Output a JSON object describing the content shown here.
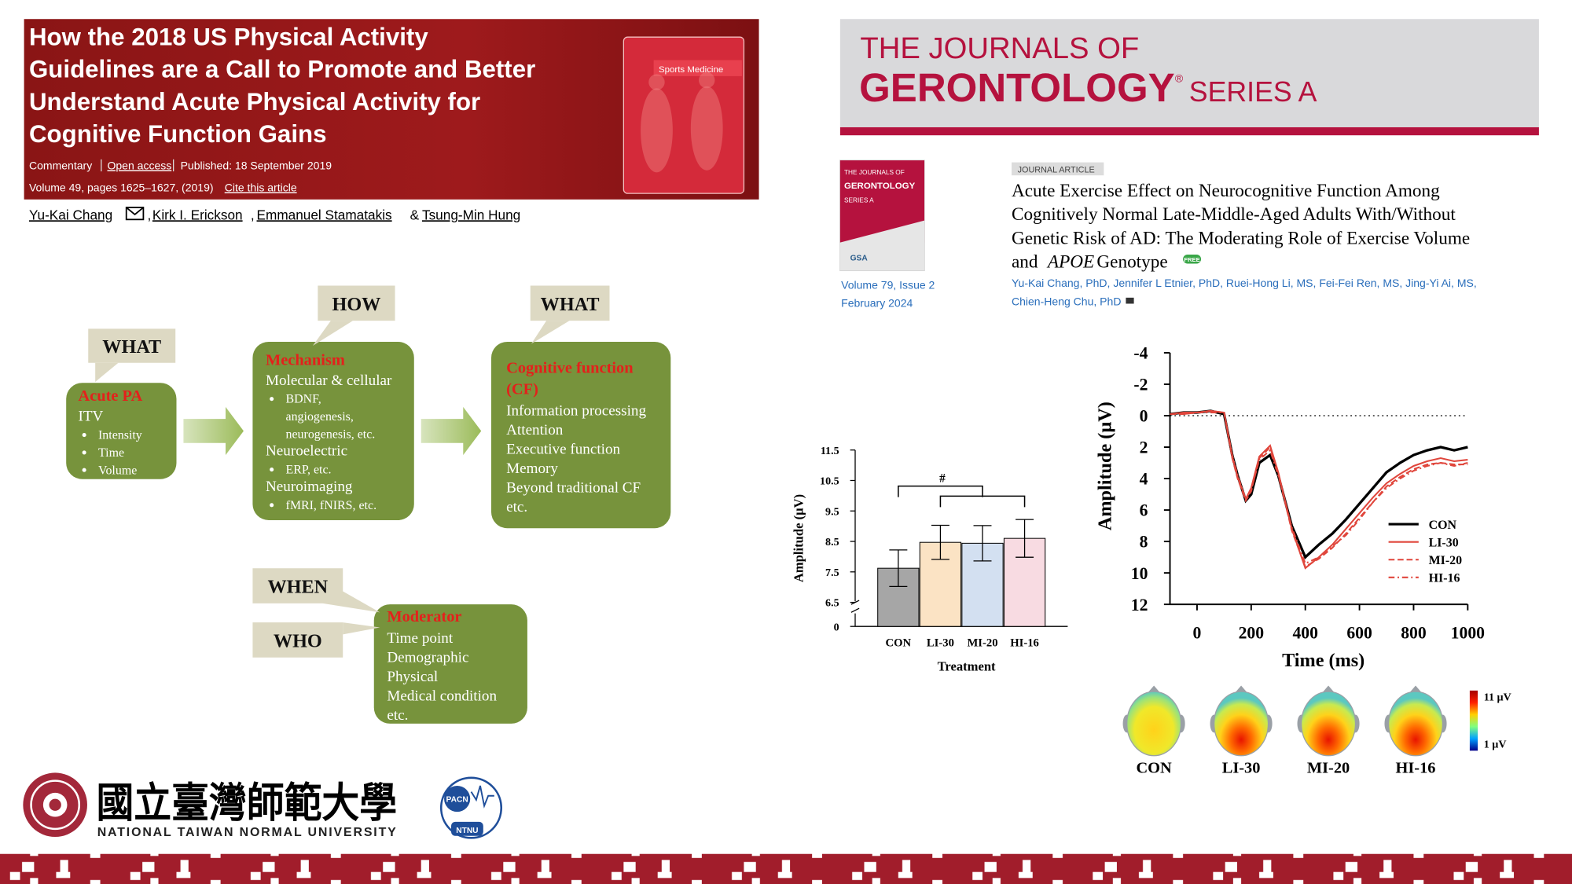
{
  "article1": {
    "title_lines": [
      "How the 2018 US Physical Activity",
      "Guidelines are a Call to Promote and Better",
      "Understand Acute Physical Activity for",
      "Cognitive Function Gains"
    ],
    "article_type": "Commentary",
    "access": "Open access",
    "published": "Published: 18 September 2019",
    "volume": "Volume 49, pages 1625–1627, (2019)",
    "cite": "Cite this article",
    "journal": "Sports Medicine",
    "authors": [
      "Yu-Kai Chang",
      "Kirk I. Erickson",
      "Emmanuel Stamatakis",
      "Tsung-Min Hung"
    ],
    "separators": [
      ",",
      ",",
      "&"
    ]
  },
  "journal2": {
    "banner_top": "THE JOURNALS OF",
    "banner_main": "GERONTOLOGY",
    "banner_reg": "®",
    "banner_series": "SERIES A",
    "cover_lines": [
      "THE JOURNALS OF",
      "GERONTOLOGY",
      "SERIES A"
    ],
    "cover_logo": "GSA",
    "volume": "Volume 79, Issue 2",
    "date": "February 2024",
    "tag": "JOURNAL ARTICLE",
    "title_lines": [
      "Acute Exercise Effect on Neurocognitive Function Among",
      "Cognitively Normal Late-Middle-Aged Adults With/Without",
      "Genetic Risk of AD: The Moderating Role of Exercise Volume"
    ],
    "title_last": [
      "and",
      "APOE",
      "Genotype"
    ],
    "badge": "FREE",
    "author_lines": [
      "Yu-Kai Chang, PhD, Jennifer L Etnier, PhD, Ruei-Hong Li, MS, Fei-Fei Ren, MS, Jing-Yi Ai, MS,",
      "Chien-Heng Chu, PhD"
    ]
  },
  "diagram": {
    "nodes": [
      {
        "questions": [
          "WHAT"
        ],
        "heading": [
          "Acute PA"
        ],
        "items": [
          {
            "text": "ITV",
            "bullets": [
              [
                "Intensity"
              ],
              [
                "Time"
              ],
              [
                "Volume"
              ]
            ]
          }
        ]
      },
      {
        "questions": [
          "HOW"
        ],
        "heading": [
          "Mechanism"
        ],
        "items": [
          {
            "text": "Molecular & cellular",
            "bullets": [
              [
                "BDNF,",
                "angiogenesis,",
                "neurogenesis, etc."
              ]
            ]
          },
          {
            "text": "Neuroelectric",
            "bullets": [
              [
                "ERP, etc."
              ]
            ]
          },
          {
            "text": "Neuroimaging",
            "bullets": [
              [
                "fMRI, fNIRS, etc."
              ]
            ]
          }
        ]
      },
      {
        "questions": [
          "WHAT"
        ],
        "heading": [
          "Cognitive function",
          "(CF)"
        ],
        "items": [
          {
            "text": "Information processing"
          },
          {
            "text": "Attention"
          },
          {
            "text": "Executive function"
          },
          {
            "text": "Memory"
          },
          {
            "text": "Beyond traditional CF"
          },
          {
            "text": "etc."
          }
        ]
      },
      {
        "questions": [
          "WHEN",
          "WHO"
        ],
        "heading": [
          "Moderator"
        ],
        "items": [
          {
            "text": "Time point"
          },
          {
            "text": "Demographic"
          },
          {
            "text": "Physical"
          },
          {
            "text": "Medical condition"
          },
          {
            "text": "etc."
          }
        ]
      }
    ]
  },
  "chart_data": [
    {
      "type": "bar",
      "categories": [
        "CON",
        "LI-30",
        "MI-20",
        "HI-16"
      ],
      "values": [
        7.62,
        8.47,
        8.44,
        8.6
      ],
      "errors": [
        0.6,
        0.56,
        0.58,
        0.62
      ],
      "colors": [
        "#a6a6a6",
        "#fbe3c4",
        "#d3e0f1",
        "#f8dbe2"
      ],
      "ylim": [
        0,
        11.5
      ],
      "axis_break": [
        0,
        6.5
      ],
      "yticks": [
        0,
        6.5,
        7.5,
        8.5,
        9.5,
        10.5,
        11.5
      ],
      "ylabel": "Amplitude (µV)",
      "xlabel": "Treatment",
      "annotation": "#"
    },
    {
      "type": "line",
      "x": [
        -100,
        -50,
        0,
        50,
        100,
        130,
        150,
        180,
        200,
        230,
        270,
        300,
        350,
        400,
        450,
        500,
        550,
        600,
        650,
        700,
        750,
        800,
        850,
        900,
        950,
        1000
      ],
      "series": [
        {
          "name": "CON",
          "color": "#000000",
          "dash": "solid",
          "values": [
            -0.1,
            -0.2,
            -0.2,
            -0.3,
            -0.1,
            2.5,
            3.8,
            5.4,
            5.0,
            3.0,
            2.5,
            3.8,
            7.0,
            9.0,
            8.2,
            7.5,
            6.6,
            5.6,
            4.6,
            3.6,
            3.0,
            2.5,
            2.2,
            2.0,
            2.2,
            2.0
          ]
        },
        {
          "name": "LI-30",
          "color": "#e0463c",
          "dash": "solid",
          "values": [
            -0.1,
            -0.2,
            -0.2,
            -0.3,
            -0.2,
            2.6,
            3.9,
            5.3,
            4.6,
            2.6,
            1.9,
            3.6,
            7.2,
            9.7,
            9.0,
            8.2,
            7.2,
            6.2,
            5.2,
            4.3,
            3.7,
            3.2,
            2.9,
            2.7,
            2.9,
            2.8
          ]
        },
        {
          "name": "MI-20",
          "color": "#e0463c",
          "dash": "dashed",
          "values": [
            -0.1,
            -0.1,
            -0.2,
            -0.3,
            -0.2,
            2.7,
            4.0,
            5.4,
            4.8,
            2.7,
            2.0,
            3.7,
            7.3,
            9.6,
            9.1,
            8.4,
            7.5,
            6.5,
            5.5,
            4.5,
            3.9,
            3.4,
            3.1,
            3.0,
            3.1,
            3.1
          ]
        },
        {
          "name": "HI-16",
          "color": "#e0463c",
          "dash": "dashdot",
          "values": [
            -0.1,
            -0.1,
            -0.2,
            -0.2,
            -0.2,
            2.5,
            3.8,
            5.3,
            4.7,
            2.8,
            2.2,
            3.8,
            7.1,
            9.4,
            9.0,
            8.3,
            7.6,
            6.6,
            5.5,
            4.6,
            4.0,
            3.5,
            3.2,
            3.0,
            3.2,
            3.0
          ]
        }
      ],
      "xlim": [
        -100,
        1000
      ],
      "xticks": [
        0,
        200,
        400,
        600,
        800,
        1000
      ],
      "ylim": [
        -4,
        12
      ],
      "y_inverted": true,
      "yticks": [
        -4,
        -2,
        0,
        2,
        4,
        6,
        8,
        10,
        12
      ],
      "zero_line": true,
      "xlabel": "Time (ms)",
      "ylabel": "Amplitude (µV)",
      "legend": "right"
    }
  ],
  "topomaps": {
    "labels": [
      "CON",
      "LI-30",
      "MI-20",
      "HI-16"
    ],
    "colorbar_max": "11 µV",
    "colorbar_min": "1 µV"
  },
  "logo": {
    "chinese": "國立臺灣師範大學",
    "english": "NATIONAL TAIWAN NORMAL UNIVERSITY",
    "lab_top": "PACN",
    "lab_bottom": "NTNU"
  }
}
